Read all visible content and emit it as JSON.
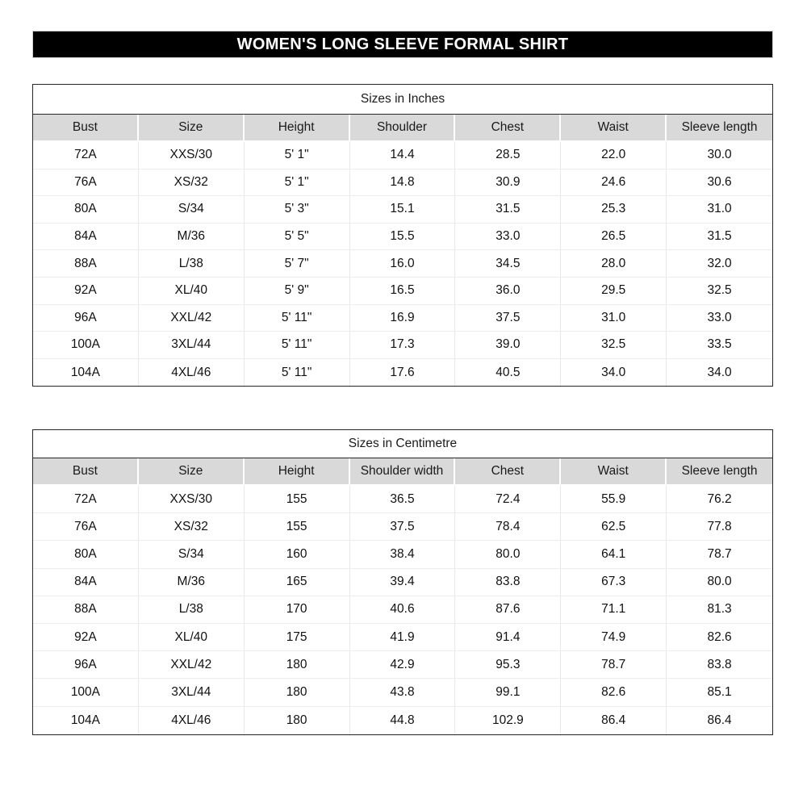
{
  "page_title": "WOMEN'S LONG SLEEVE FORMAL SHIRT",
  "colors": {
    "banner_bg": "#000000",
    "banner_text": "#ffffff",
    "header_row_bg": "#d9d9d9",
    "table_border": "#262626",
    "grid_line": "#e8e8e8"
  },
  "tables": [
    {
      "title": "Sizes in Inches",
      "headers": [
        "Bust",
        "Size",
        "Height",
        "Shoulder",
        "Chest",
        "Waist",
        "Sleeve length"
      ],
      "rows": [
        [
          "72A",
          "XXS/30",
          "5' 1\"",
          "14.4",
          "28.5",
          "22.0",
          "30.0"
        ],
        [
          "76A",
          "XS/32",
          "5' 1\"",
          "14.8",
          "30.9",
          "24.6",
          "30.6"
        ],
        [
          "80A",
          "S/34",
          "5' 3\"",
          "15.1",
          "31.5",
          "25.3",
          "31.0"
        ],
        [
          "84A",
          "M/36",
          "5' 5\"",
          "15.5",
          "33.0",
          "26.5",
          "31.5"
        ],
        [
          "88A",
          "L/38",
          "5' 7\"",
          "16.0",
          "34.5",
          "28.0",
          "32.0"
        ],
        [
          "92A",
          "XL/40",
          "5' 9\"",
          "16.5",
          "36.0",
          "29.5",
          "32.5"
        ],
        [
          "96A",
          "XXL/42",
          "5' 11\"",
          "16.9",
          "37.5",
          "31.0",
          "33.0"
        ],
        [
          "100A",
          "3XL/44",
          "5' 11\"",
          "17.3",
          "39.0",
          "32.5",
          "33.5"
        ],
        [
          "104A",
          "4XL/46",
          "5' 11\"",
          "17.6",
          "40.5",
          "34.0",
          "34.0"
        ]
      ]
    },
    {
      "title": "Sizes in Centimetre",
      "headers": [
        "Bust",
        "Size",
        "Height",
        "Shoulder width",
        "Chest",
        "Waist",
        "Sleeve length"
      ],
      "rows": [
        [
          "72A",
          "XXS/30",
          "155",
          "36.5",
          "72.4",
          "55.9",
          "76.2"
        ],
        [
          "76A",
          "XS/32",
          "155",
          "37.5",
          "78.4",
          "62.5",
          "77.8"
        ],
        [
          "80A",
          "S/34",
          "160",
          "38.4",
          "80.0",
          "64.1",
          "78.7"
        ],
        [
          "84A",
          "M/36",
          "165",
          "39.4",
          "83.8",
          "67.3",
          "80.0"
        ],
        [
          "88A",
          "L/38",
          "170",
          "40.6",
          "87.6",
          "71.1",
          "81.3"
        ],
        [
          "92A",
          "XL/40",
          "175",
          "41.9",
          "91.4",
          "74.9",
          "82.6"
        ],
        [
          "96A",
          "XXL/42",
          "180",
          "42.9",
          "95.3",
          "78.7",
          "83.8"
        ],
        [
          "100A",
          "3XL/44",
          "180",
          "43.8",
          "99.1",
          "82.6",
          "85.1"
        ],
        [
          "104A",
          "4XL/46",
          "180",
          "44.8",
          "102.9",
          "86.4",
          "86.4"
        ]
      ]
    }
  ]
}
